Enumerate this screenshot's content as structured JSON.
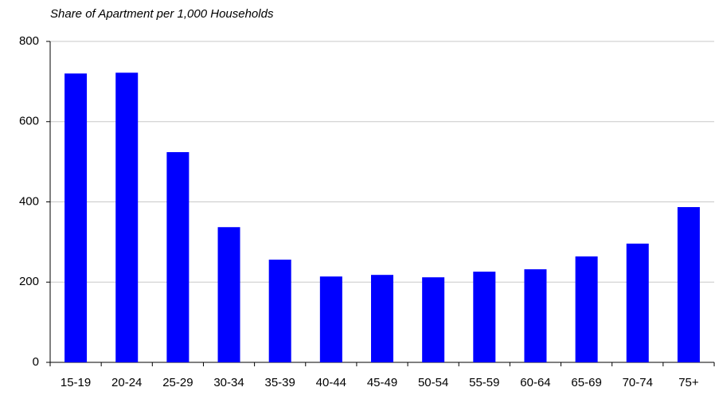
{
  "chart_data": {
    "type": "bar",
    "title": "Share of Apartment per 1,000 Households",
    "categories": [
      "15-19",
      "20-24",
      "25-29",
      "30-34",
      "35-39",
      "40-44",
      "45-49",
      "50-54",
      "55-59",
      "60-64",
      "65-69",
      "70-74",
      "75+"
    ],
    "values": [
      720,
      722,
      524,
      337,
      256,
      214,
      218,
      212,
      226,
      232,
      264,
      296,
      387
    ],
    "color": "#0000ff",
    "ylim": [
      0,
      800
    ],
    "yticks": [
      0,
      200,
      400,
      600,
      800
    ],
    "grid": true
  }
}
